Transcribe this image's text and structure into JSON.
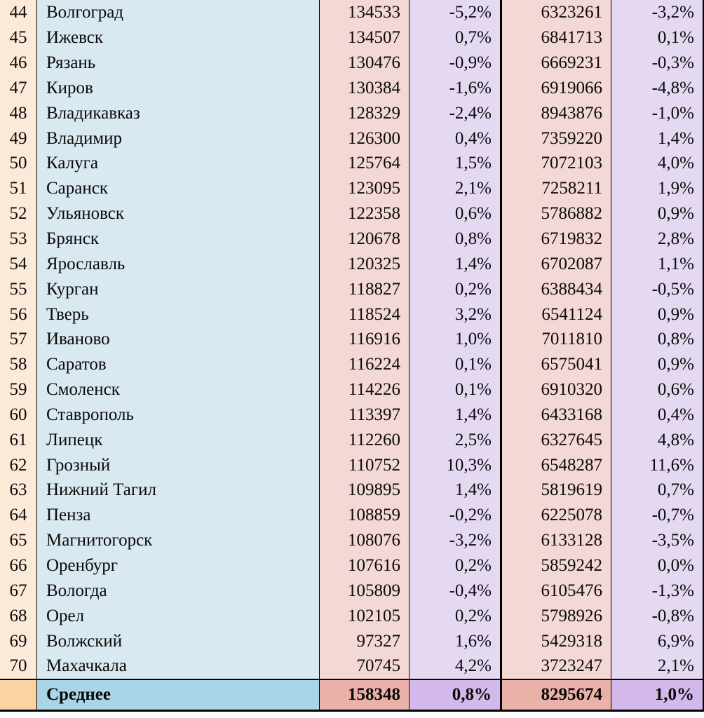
{
  "colors": {
    "rank_bg": "#fcead9",
    "city_bg": "#d9e9f1",
    "value_bg": "#f3d8d5",
    "pct_bg": "#e5d9f1",
    "avg_rank_bg": "#fad3a4",
    "avg_city_bg": "#aad5e6",
    "avg_value_bg": "#e9b1a8",
    "avg_pct_bg": "#d2b8eb",
    "border": "#000000",
    "page_bg": "#ffffff"
  },
  "table": {
    "rows": [
      {
        "rank": "44",
        "city": "Волгоград",
        "value_a": "134533",
        "change_a": "-5,2%",
        "value_b": "6323261",
        "change_b": "-3,2%"
      },
      {
        "rank": "45",
        "city": "Ижевск",
        "value_a": "134507",
        "change_a": "0,7%",
        "value_b": "6841713",
        "change_b": "0,1%"
      },
      {
        "rank": "46",
        "city": "Рязань",
        "value_a": "130476",
        "change_a": "-0,9%",
        "value_b": "6669231",
        "change_b": "-0,3%"
      },
      {
        "rank": "47",
        "city": "Киров",
        "value_a": "130384",
        "change_a": "-1,6%",
        "value_b": "6919066",
        "change_b": "-4,8%"
      },
      {
        "rank": "48",
        "city": "Владикавказ",
        "value_a": "128329",
        "change_a": "-2,4%",
        "value_b": "8943876",
        "change_b": "-1,0%"
      },
      {
        "rank": "49",
        "city": "Владимир",
        "value_a": "126300",
        "change_a": "0,4%",
        "value_b": "7359220",
        "change_b": "1,4%"
      },
      {
        "rank": "50",
        "city": "Калуга",
        "value_a": "125764",
        "change_a": "1,5%",
        "value_b": "7072103",
        "change_b": "4,0%"
      },
      {
        "rank": "51",
        "city": "Саранск",
        "value_a": "123095",
        "change_a": "2,1%",
        "value_b": "7258211",
        "change_b": "1,9%"
      },
      {
        "rank": "52",
        "city": "Ульяновск",
        "value_a": "122358",
        "change_a": "0,6%",
        "value_b": "5786882",
        "change_b": "0,9%"
      },
      {
        "rank": "53",
        "city": "Брянск",
        "value_a": "120678",
        "change_a": "0,8%",
        "value_b": "6719832",
        "change_b": "2,8%"
      },
      {
        "rank": "54",
        "city": "Ярославль",
        "value_a": "120325",
        "change_a": "1,4%",
        "value_b": "6702087",
        "change_b": "1,1%"
      },
      {
        "rank": "55",
        "city": "Курган",
        "value_a": "118827",
        "change_a": "0,2%",
        "value_b": "6388434",
        "change_b": "-0,5%"
      },
      {
        "rank": "56",
        "city": "Тверь",
        "value_a": "118524",
        "change_a": "3,2%",
        "value_b": "6541124",
        "change_b": "0,9%"
      },
      {
        "rank": "57",
        "city": "Иваново",
        "value_a": "116916",
        "change_a": "1,0%",
        "value_b": "7011810",
        "change_b": "0,8%"
      },
      {
        "rank": "58",
        "city": "Саратов",
        "value_a": "116224",
        "change_a": "0,1%",
        "value_b": "6575041",
        "change_b": "0,9%"
      },
      {
        "rank": "59",
        "city": "Смоленск",
        "value_a": "114226",
        "change_a": "0,1%",
        "value_b": "6910320",
        "change_b": "0,6%"
      },
      {
        "rank": "60",
        "city": "Ставрополь",
        "value_a": "113397",
        "change_a": "1,4%",
        "value_b": "6433168",
        "change_b": "0,4%"
      },
      {
        "rank": "61",
        "city": "Липецк",
        "value_a": "112260",
        "change_a": "2,5%",
        "value_b": "6327645",
        "change_b": "4,8%"
      },
      {
        "rank": "62",
        "city": "Грозный",
        "value_a": "110752",
        "change_a": "10,3%",
        "value_b": "6548287",
        "change_b": "11,6%"
      },
      {
        "rank": "63",
        "city": "Нижний Тагил",
        "value_a": "109895",
        "change_a": "1,4%",
        "value_b": "5819619",
        "change_b": "0,7%"
      },
      {
        "rank": "64",
        "city": "Пенза",
        "value_a": "108859",
        "change_a": "-0,2%",
        "value_b": "6225078",
        "change_b": "-0,7%"
      },
      {
        "rank": "65",
        "city": "Магнитогорск",
        "value_a": "108076",
        "change_a": "-3,2%",
        "value_b": "6133128",
        "change_b": "-3,5%"
      },
      {
        "rank": "66",
        "city": "Оренбург",
        "value_a": "107616",
        "change_a": "0,2%",
        "value_b": "5859242",
        "change_b": "0,0%"
      },
      {
        "rank": "67",
        "city": "Вологда",
        "value_a": "105809",
        "change_a": "-0,4%",
        "value_b": "6105476",
        "change_b": "-1,3%"
      },
      {
        "rank": "68",
        "city": "Орел",
        "value_a": "102105",
        "change_a": "0,2%",
        "value_b": "5798926",
        "change_b": "-0,8%"
      },
      {
        "rank": "69",
        "city": "Волжский",
        "value_a": "97327",
        "change_a": "1,6%",
        "value_b": "5429318",
        "change_b": "6,9%"
      },
      {
        "rank": "70",
        "city": "Махачкала",
        "value_a": "70745",
        "change_a": "4,2%",
        "value_b": "3723247",
        "change_b": "2,1%"
      }
    ],
    "summary": {
      "label": "Среднее",
      "value_a": "158348",
      "change_a": "0,8%",
      "value_b": "8295674",
      "change_b": "1,0%"
    }
  }
}
